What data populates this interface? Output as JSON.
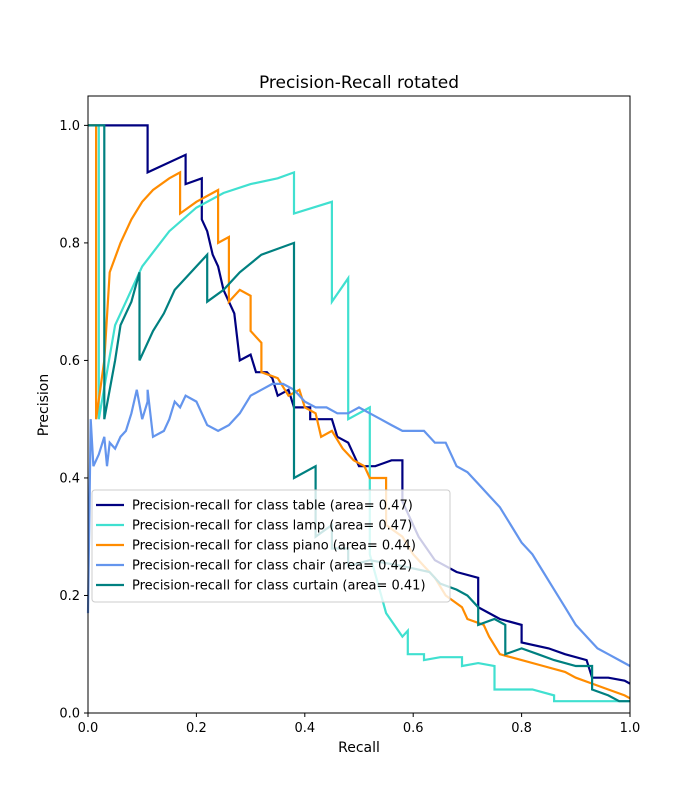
{
  "chart_data": {
    "type": "line",
    "title": "Precision-Recall rotated",
    "xlabel": "Recall",
    "ylabel": "Precision",
    "xlim": [
      0,
      1
    ],
    "ylim": [
      0,
      1.05
    ],
    "x_ticks": [
      "0.0",
      "0.2",
      "0.4",
      "0.6",
      "0.8",
      "1.0"
    ],
    "y_ticks": [
      "0.0",
      "0.2",
      "0.4",
      "0.6",
      "0.8",
      "1.0"
    ],
    "grid": false,
    "legend_position": "center-left",
    "series": [
      {
        "name": "Precision-recall for class table (area= 0.47)",
        "color": "#000080",
        "points": [
          [
            0,
            1.0
          ],
          [
            0.11,
            1.0
          ],
          [
            0.11,
            0.92
          ],
          [
            0.18,
            0.95
          ],
          [
            0.18,
            0.9
          ],
          [
            0.21,
            0.91
          ],
          [
            0.21,
            0.84
          ],
          [
            0.22,
            0.82
          ],
          [
            0.23,
            0.78
          ],
          [
            0.24,
            0.76
          ],
          [
            0.25,
            0.72
          ],
          [
            0.26,
            0.7
          ],
          [
            0.27,
            0.68
          ],
          [
            0.28,
            0.6
          ],
          [
            0.3,
            0.61
          ],
          [
            0.31,
            0.58
          ],
          [
            0.33,
            0.58
          ],
          [
            0.34,
            0.57
          ],
          [
            0.35,
            0.54
          ],
          [
            0.37,
            0.55
          ],
          [
            0.38,
            0.52
          ],
          [
            0.41,
            0.52
          ],
          [
            0.41,
            0.5
          ],
          [
            0.45,
            0.5
          ],
          [
            0.46,
            0.47
          ],
          [
            0.48,
            0.46
          ],
          [
            0.49,
            0.44
          ],
          [
            0.5,
            0.42
          ],
          [
            0.53,
            0.42
          ],
          [
            0.56,
            0.43
          ],
          [
            0.58,
            0.43
          ],
          [
            0.58,
            0.36
          ],
          [
            0.61,
            0.3
          ],
          [
            0.64,
            0.26
          ],
          [
            0.68,
            0.24
          ],
          [
            0.72,
            0.23
          ],
          [
            0.72,
            0.18
          ],
          [
            0.74,
            0.17
          ],
          [
            0.76,
            0.16
          ],
          [
            0.8,
            0.15
          ],
          [
            0.8,
            0.12
          ],
          [
            0.85,
            0.11
          ],
          [
            0.88,
            0.1
          ],
          [
            0.92,
            0.09
          ],
          [
            0.93,
            0.06
          ],
          [
            0.96,
            0.06
          ],
          [
            0.99,
            0.055
          ],
          [
            1.0,
            0.05
          ]
        ]
      },
      {
        "name": "Precision-recall for class lamp (area= 0.47)",
        "color": "#40e0d0",
        "points": [
          [
            0,
            1.0
          ],
          [
            0.02,
            1.0
          ],
          [
            0.02,
            0.5
          ],
          [
            0.05,
            0.66
          ],
          [
            0.1,
            0.76
          ],
          [
            0.15,
            0.82
          ],
          [
            0.2,
            0.86
          ],
          [
            0.25,
            0.885
          ],
          [
            0.3,
            0.9
          ],
          [
            0.35,
            0.91
          ],
          [
            0.38,
            0.92
          ],
          [
            0.38,
            0.85
          ],
          [
            0.45,
            0.87
          ],
          [
            0.45,
            0.7
          ],
          [
            0.48,
            0.74
          ],
          [
            0.48,
            0.5
          ],
          [
            0.52,
            0.52
          ],
          [
            0.52,
            0.27
          ],
          [
            0.55,
            0.17
          ],
          [
            0.58,
            0.13
          ],
          [
            0.59,
            0.14
          ],
          [
            0.59,
            0.1
          ],
          [
            0.62,
            0.1
          ],
          [
            0.62,
            0.09
          ],
          [
            0.65,
            0.095
          ],
          [
            0.69,
            0.095
          ],
          [
            0.69,
            0.08
          ],
          [
            0.72,
            0.085
          ],
          [
            0.75,
            0.08
          ],
          [
            0.75,
            0.04
          ],
          [
            0.82,
            0.04
          ],
          [
            0.86,
            0.03
          ],
          [
            0.86,
            0.02
          ],
          [
            0.94,
            0.02
          ],
          [
            1.0,
            0.02
          ]
        ]
      },
      {
        "name": "Precision-recall for class piano (area= 0.44)",
        "color": "#ff8c00",
        "points": [
          [
            0,
            1.0
          ],
          [
            0.015,
            1.0
          ],
          [
            0.015,
            0.5
          ],
          [
            0.03,
            0.6
          ],
          [
            0.04,
            0.75
          ],
          [
            0.06,
            0.8
          ],
          [
            0.08,
            0.84
          ],
          [
            0.1,
            0.87
          ],
          [
            0.12,
            0.89
          ],
          [
            0.15,
            0.91
          ],
          [
            0.17,
            0.92
          ],
          [
            0.17,
            0.85
          ],
          [
            0.2,
            0.87
          ],
          [
            0.24,
            0.89
          ],
          [
            0.24,
            0.8
          ],
          [
            0.26,
            0.81
          ],
          [
            0.26,
            0.7
          ],
          [
            0.28,
            0.72
          ],
          [
            0.3,
            0.71
          ],
          [
            0.3,
            0.65
          ],
          [
            0.32,
            0.63
          ],
          [
            0.32,
            0.58
          ],
          [
            0.35,
            0.57
          ],
          [
            0.37,
            0.54
          ],
          [
            0.39,
            0.55
          ],
          [
            0.4,
            0.52
          ],
          [
            0.42,
            0.51
          ],
          [
            0.43,
            0.47
          ],
          [
            0.45,
            0.48
          ],
          [
            0.47,
            0.45
          ],
          [
            0.49,
            0.43
          ],
          [
            0.51,
            0.42
          ],
          [
            0.52,
            0.4
          ],
          [
            0.55,
            0.4
          ],
          [
            0.55,
            0.32
          ],
          [
            0.58,
            0.3
          ],
          [
            0.6,
            0.27
          ],
          [
            0.62,
            0.25
          ],
          [
            0.64,
            0.23
          ],
          [
            0.66,
            0.2
          ],
          [
            0.69,
            0.18
          ],
          [
            0.7,
            0.16
          ],
          [
            0.73,
            0.15
          ],
          [
            0.74,
            0.13
          ],
          [
            0.76,
            0.1
          ],
          [
            0.8,
            0.09
          ],
          [
            0.84,
            0.08
          ],
          [
            0.88,
            0.07
          ],
          [
            0.9,
            0.06
          ],
          [
            0.93,
            0.05
          ],
          [
            0.96,
            0.04
          ],
          [
            0.99,
            0.03
          ],
          [
            1.0,
            0.025
          ]
        ]
      },
      {
        "name": "Precision-recall for class chair (area= 0.42)",
        "color": "#6495ed",
        "points": [
          [
            0,
            0.17
          ],
          [
            0.005,
            0.5
          ],
          [
            0.01,
            0.42
          ],
          [
            0.02,
            0.44
          ],
          [
            0.03,
            0.47
          ],
          [
            0.035,
            0.42
          ],
          [
            0.04,
            0.46
          ],
          [
            0.05,
            0.45
          ],
          [
            0.06,
            0.47
          ],
          [
            0.07,
            0.48
          ],
          [
            0.08,
            0.51
          ],
          [
            0.09,
            0.55
          ],
          [
            0.1,
            0.5
          ],
          [
            0.11,
            0.53
          ],
          [
            0.11,
            0.55
          ],
          [
            0.12,
            0.47
          ],
          [
            0.14,
            0.48
          ],
          [
            0.15,
            0.5
          ],
          [
            0.16,
            0.53
          ],
          [
            0.17,
            0.52
          ],
          [
            0.18,
            0.54
          ],
          [
            0.2,
            0.53
          ],
          [
            0.21,
            0.51
          ],
          [
            0.22,
            0.49
          ],
          [
            0.24,
            0.48
          ],
          [
            0.26,
            0.49
          ],
          [
            0.28,
            0.51
          ],
          [
            0.3,
            0.54
          ],
          [
            0.32,
            0.55
          ],
          [
            0.34,
            0.56
          ],
          [
            0.36,
            0.56
          ],
          [
            0.38,
            0.55
          ],
          [
            0.4,
            0.53
          ],
          [
            0.42,
            0.52
          ],
          [
            0.44,
            0.52
          ],
          [
            0.46,
            0.51
          ],
          [
            0.48,
            0.51
          ],
          [
            0.5,
            0.52
          ],
          [
            0.52,
            0.51
          ],
          [
            0.54,
            0.5
          ],
          [
            0.56,
            0.49
          ],
          [
            0.58,
            0.48
          ],
          [
            0.6,
            0.48
          ],
          [
            0.62,
            0.48
          ],
          [
            0.64,
            0.46
          ],
          [
            0.66,
            0.46
          ],
          [
            0.68,
            0.42
          ],
          [
            0.7,
            0.41
          ],
          [
            0.72,
            0.39
          ],
          [
            0.74,
            0.37
          ],
          [
            0.76,
            0.35
          ],
          [
            0.78,
            0.32
          ],
          [
            0.8,
            0.29
          ],
          [
            0.82,
            0.27
          ],
          [
            0.84,
            0.24
          ],
          [
            0.86,
            0.21
          ],
          [
            0.88,
            0.18
          ],
          [
            0.9,
            0.15
          ],
          [
            0.92,
            0.13
          ],
          [
            0.94,
            0.11
          ],
          [
            0.96,
            0.1
          ],
          [
            0.98,
            0.09
          ],
          [
            1.0,
            0.08
          ]
        ]
      },
      {
        "name": "Precision-recall for class curtain (area= 0.41)",
        "color": "#008080",
        "points": [
          [
            0,
            1.0
          ],
          [
            0.03,
            1.0
          ],
          [
            0.03,
            0.5
          ],
          [
            0.05,
            0.6
          ],
          [
            0.06,
            0.66
          ],
          [
            0.08,
            0.7
          ],
          [
            0.095,
            0.75
          ],
          [
            0.095,
            0.6
          ],
          [
            0.12,
            0.65
          ],
          [
            0.14,
            0.68
          ],
          [
            0.16,
            0.72
          ],
          [
            0.2,
            0.76
          ],
          [
            0.22,
            0.78
          ],
          [
            0.22,
            0.7
          ],
          [
            0.25,
            0.72
          ],
          [
            0.28,
            0.75
          ],
          [
            0.32,
            0.78
          ],
          [
            0.38,
            0.8
          ],
          [
            0.38,
            0.4
          ],
          [
            0.42,
            0.42
          ],
          [
            0.42,
            0.3
          ],
          [
            0.45,
            0.32
          ],
          [
            0.45,
            0.28
          ],
          [
            0.48,
            0.28
          ],
          [
            0.48,
            0.25
          ],
          [
            0.52,
            0.26
          ],
          [
            0.58,
            0.25
          ],
          [
            0.63,
            0.24
          ],
          [
            0.65,
            0.22
          ],
          [
            0.68,
            0.21
          ],
          [
            0.7,
            0.2
          ],
          [
            0.72,
            0.18
          ],
          [
            0.72,
            0.15
          ],
          [
            0.75,
            0.16
          ],
          [
            0.77,
            0.15
          ],
          [
            0.77,
            0.1
          ],
          [
            0.8,
            0.11
          ],
          [
            0.83,
            0.1
          ],
          [
            0.86,
            0.09
          ],
          [
            0.9,
            0.08
          ],
          [
            0.93,
            0.08
          ],
          [
            0.93,
            0.04
          ],
          [
            0.96,
            0.03
          ],
          [
            0.98,
            0.02
          ],
          [
            1.0,
            0.02
          ]
        ]
      }
    ]
  }
}
